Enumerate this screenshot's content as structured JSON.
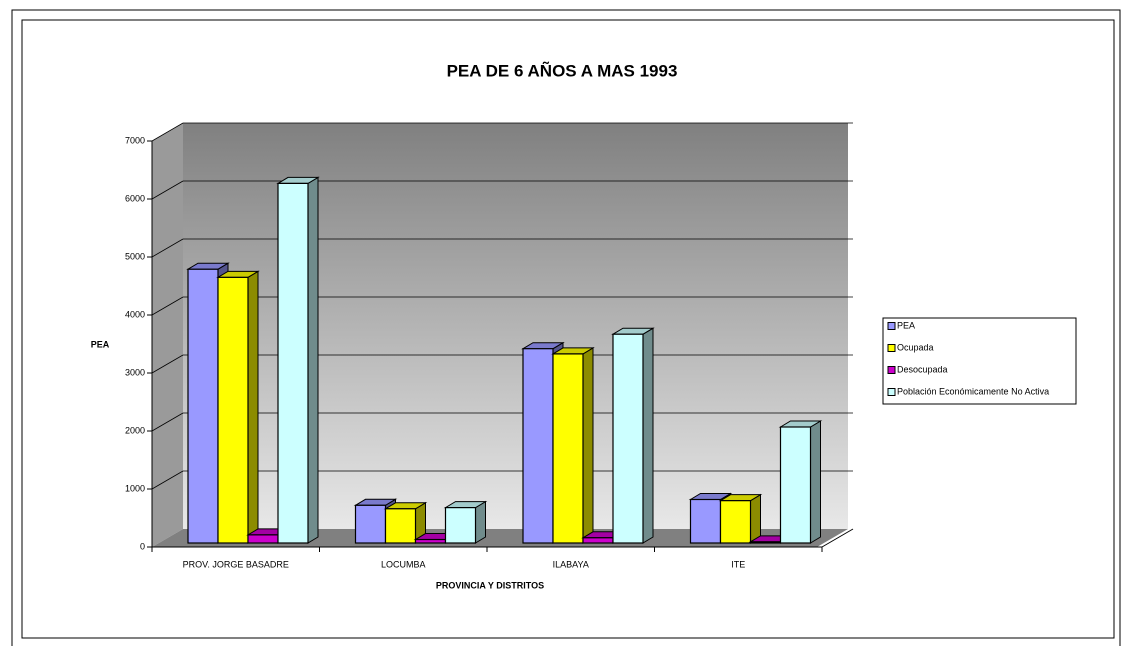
{
  "chart_data": {
    "type": "bar3d",
    "title": "PEA DE 6 AÑOS A MAS 1993",
    "xlabel": "PROVINCIA Y DISTRITOS",
    "ylabel": "PEA",
    "categories": [
      "PROV. JORGE BASADRE",
      "LOCUMBA",
      "ILABAYA",
      "ITE"
    ],
    "series": [
      {
        "name": "PEA",
        "color": "#9999ff",
        "values": [
          4720,
          650,
          3350,
          750
        ]
      },
      {
        "name": "Ocupada",
        "color": "#ffff00",
        "values": [
          4580,
          590,
          3260,
          730
        ]
      },
      {
        "name": "Desocupada",
        "color": "#cc00cc",
        "values": [
          140,
          60,
          90,
          20
        ]
      },
      {
        "name": "Población Económicamente No Activa",
        "color": "#ccffff",
        "values": [
          6200,
          610,
          3600,
          2000
        ]
      }
    ],
    "ylim": [
      0,
      7000
    ],
    "yticks": [
      0,
      1000,
      2000,
      3000,
      4000,
      5000,
      6000,
      7000
    ],
    "grid": true,
    "legend": "right"
  }
}
